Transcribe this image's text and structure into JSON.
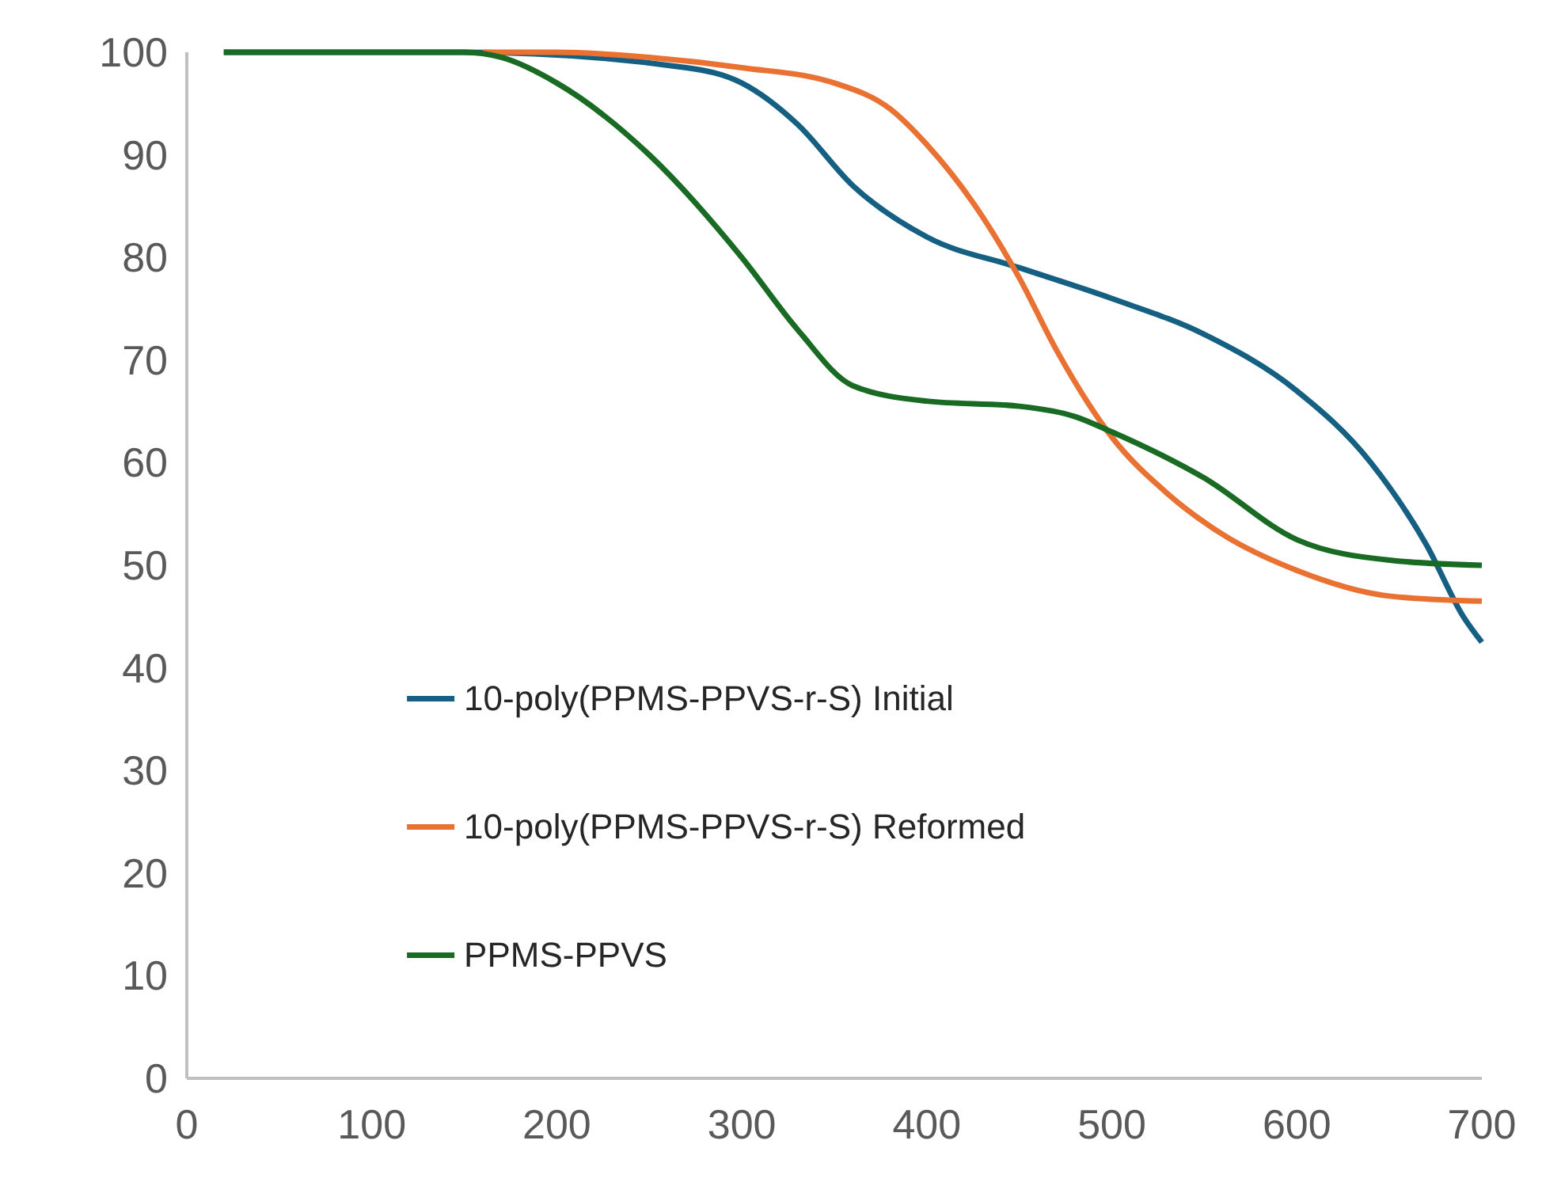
{
  "chart_data": {
    "type": "line",
    "xlim": [
      0,
      700
    ],
    "xticks": [
      0,
      100,
      200,
      300,
      400,
      500,
      600,
      700
    ],
    "ylim": [
      0,
      100
    ],
    "yticks": [
      0,
      10,
      20,
      30,
      40,
      50,
      60,
      70,
      80,
      90,
      100
    ],
    "grid": false,
    "legend": "bottom",
    "marker": "none",
    "line_style": "solid",
    "series": [
      {
        "name": "10-poly(PPMS-PPVS-r-S) Initial",
        "color": "#156082",
        "x": [
          20,
          100,
          150,
          270,
          300,
          330,
          360,
          400,
          450,
          500,
          550,
          600,
          640,
          670,
          690,
          700
        ],
        "values": [
          100,
          100,
          100,
          98.5,
          97,
          93,
          87,
          82,
          79,
          76,
          72.5,
          67,
          60,
          52,
          45,
          42.5
        ]
      },
      {
        "name": "10-poly(PPMS-PPVS-r-S) Reformed",
        "color": "#e97132",
        "x": [
          160,
          200,
          250,
          300,
          350,
          380,
          400,
          430,
          450,
          470,
          500,
          530,
          560,
          600,
          650,
          700
        ],
        "values": [
          100,
          100,
          99.5,
          98.5,
          97,
          94.5,
          91,
          84,
          78,
          71,
          62.5,
          57,
          53,
          49.5,
          47,
          46.5
        ]
      },
      {
        "name": "PPMS-PPVS",
        "color": "#196b24",
        "x": [
          20,
          100,
          150,
          170,
          200,
          250,
          300,
          330,
          360,
          400,
          450,
          480,
          500,
          550,
          600,
          650,
          700
        ],
        "values": [
          100,
          100,
          100,
          99.5,
          97,
          90,
          80,
          73,
          67.5,
          66,
          65.5,
          64.5,
          63,
          58.5,
          52.5,
          50.5,
          50
        ]
      }
    ]
  }
}
